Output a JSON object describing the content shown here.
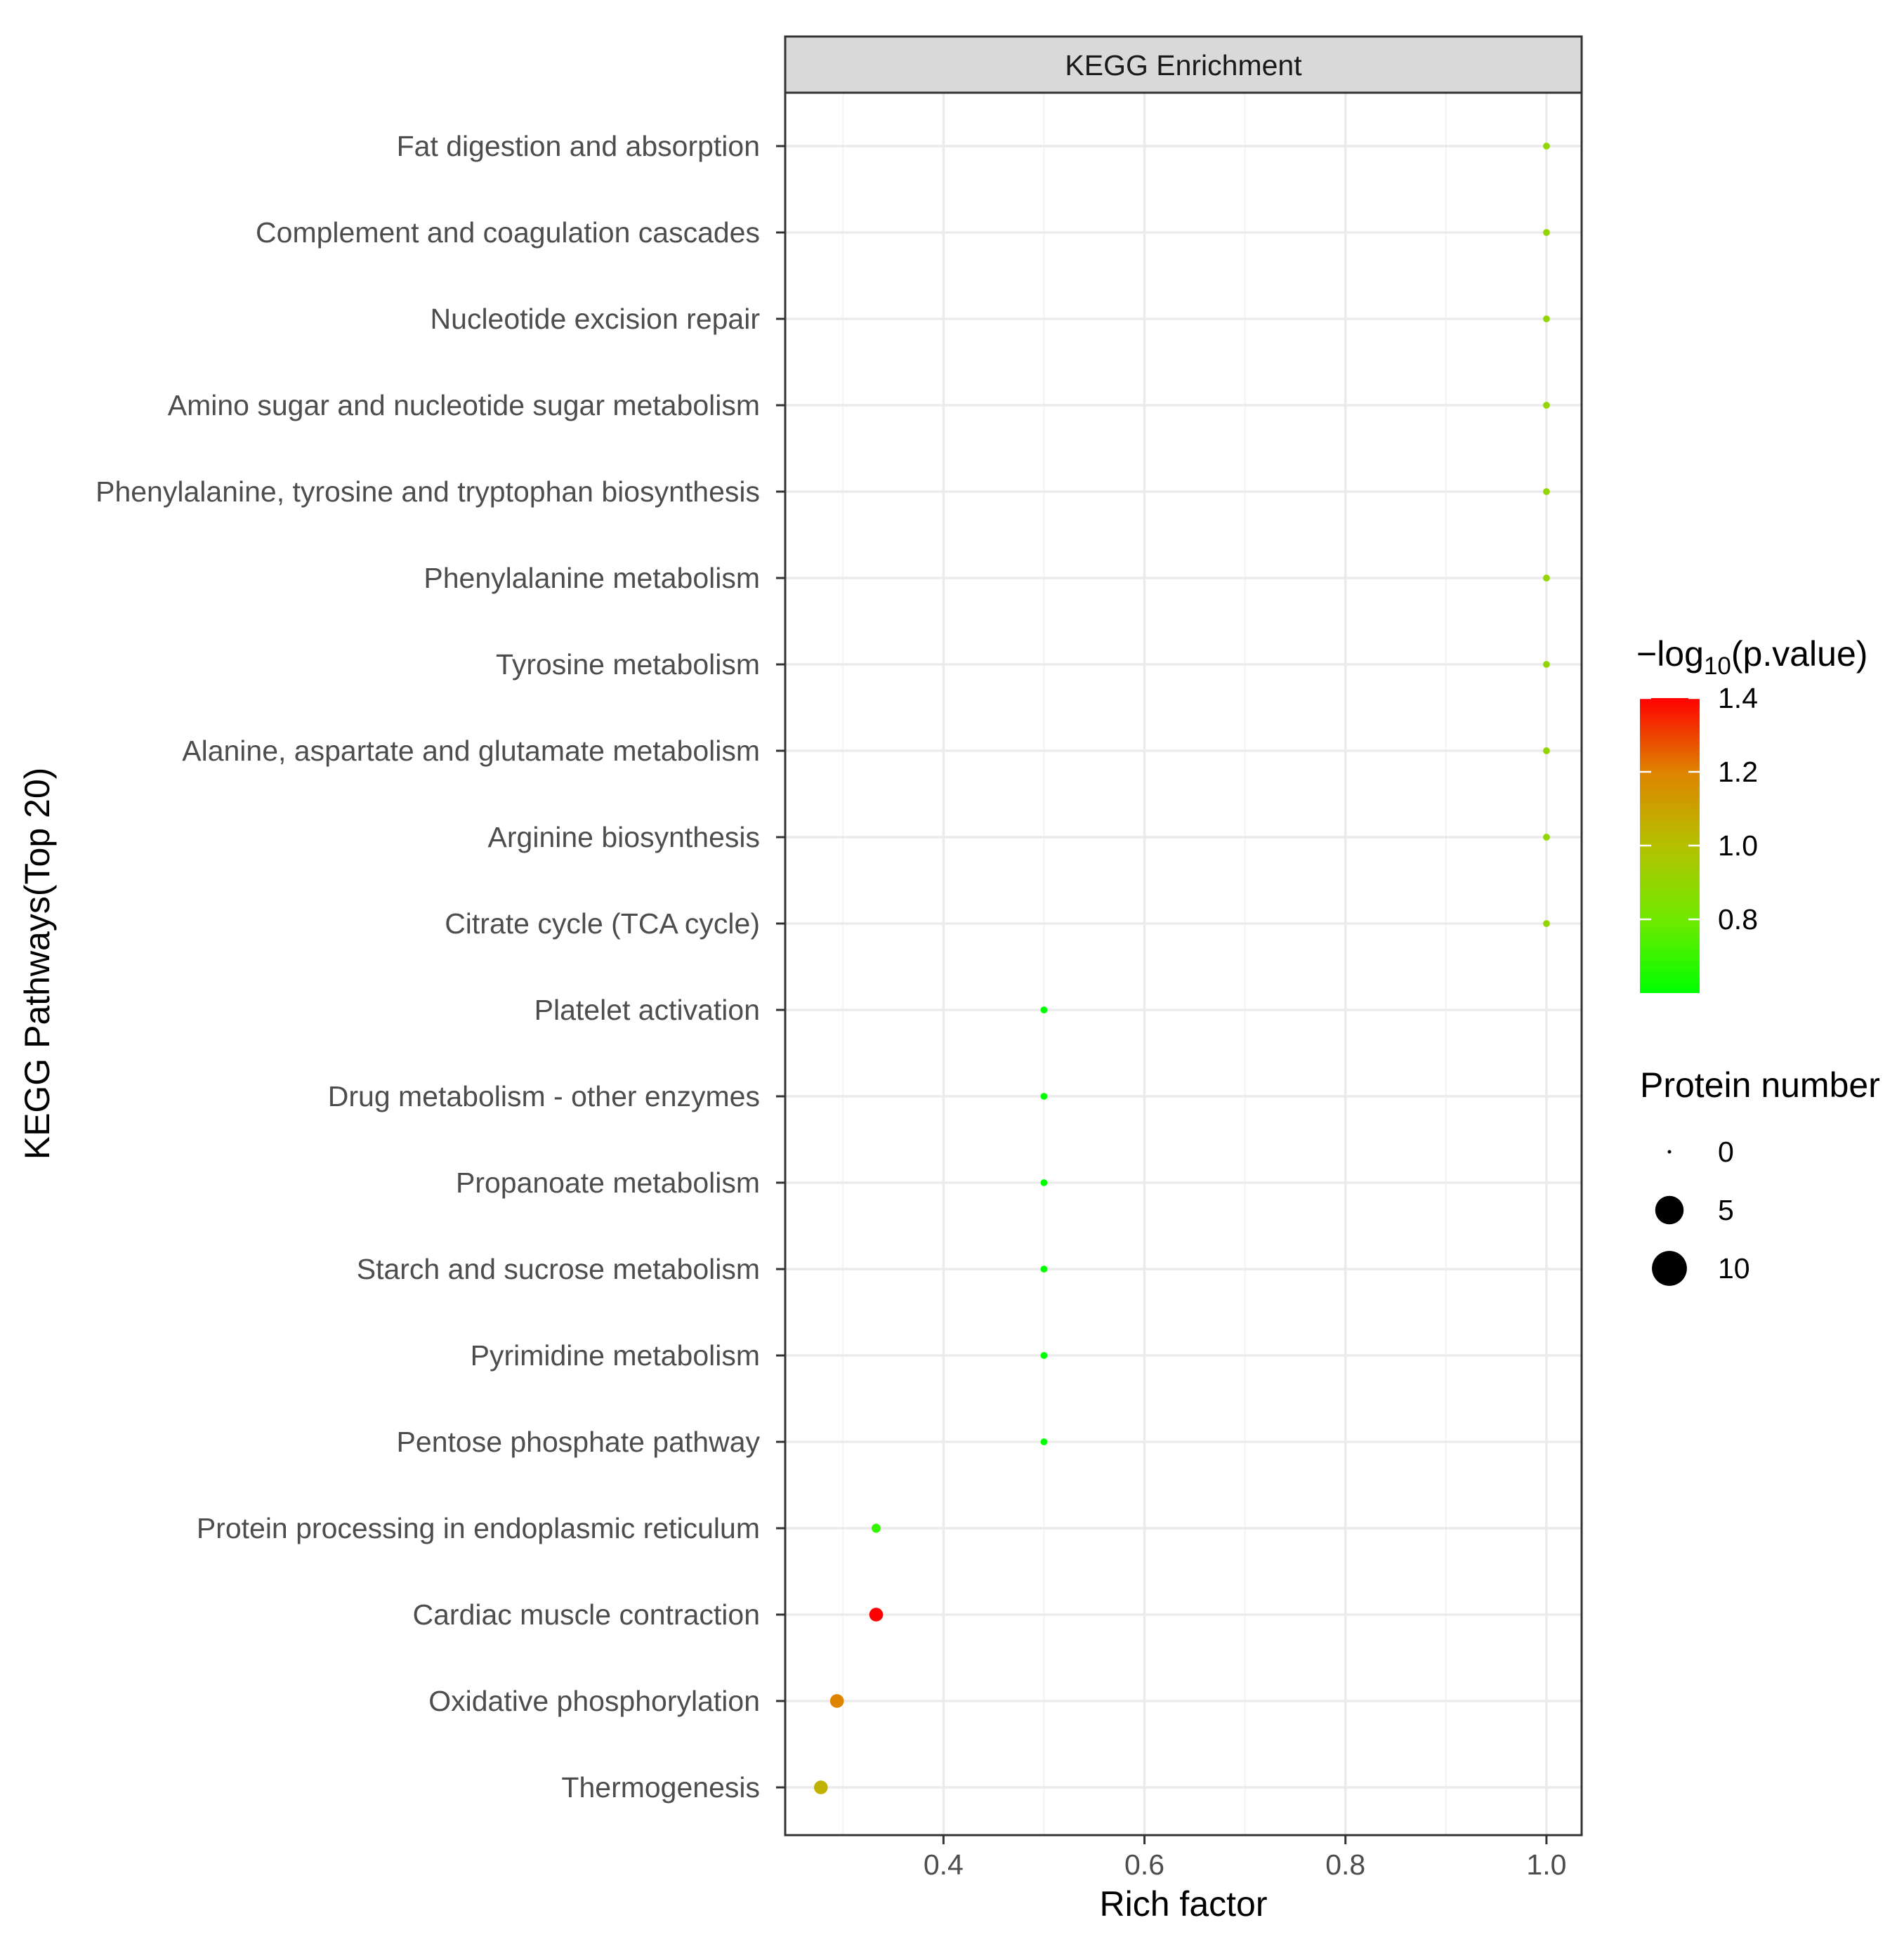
{
  "chart_data": {
    "type": "scatter",
    "title": "KEGG Enrichment",
    "xlabel": "Rich factor",
    "ylabel": "KEGG Pathways(Top 20)",
    "xlim": [
      0.2425,
      1.035
    ],
    "x_ticks": [
      0.4,
      0.6,
      0.8,
      1.0
    ],
    "x_tick_labels": [
      "0.4",
      "0.6",
      "0.8",
      "1.0"
    ],
    "grid": true,
    "legend_position": "right",
    "color_legend": {
      "title_prefix": "−log",
      "title_sub": "10",
      "title_suffix": "(p.value)",
      "min": 0.6,
      "max": 1.4,
      "breaks": [
        1.4,
        1.2,
        1.0,
        0.8
      ],
      "break_labels": [
        "1.4",
        "1.2",
        "1.0",
        "0.8"
      ],
      "low_color": "#00ff00",
      "high_color": "#ff0000"
    },
    "size_legend": {
      "title": "Protein number",
      "breaks": [
        0,
        5,
        10
      ],
      "break_labels": [
        "0",
        "5",
        "10"
      ]
    },
    "points": [
      {
        "pathway": "Fat digestion and absorption",
        "rich_factor": 1.0,
        "neg_log10_p": 0.9,
        "protein_number": 1
      },
      {
        "pathway": "Complement and coagulation cascades",
        "rich_factor": 1.0,
        "neg_log10_p": 0.9,
        "protein_number": 1
      },
      {
        "pathway": "Nucleotide excision repair",
        "rich_factor": 1.0,
        "neg_log10_p": 0.9,
        "protein_number": 1
      },
      {
        "pathway": "Amino sugar and nucleotide sugar metabolism",
        "rich_factor": 1.0,
        "neg_log10_p": 0.9,
        "protein_number": 1
      },
      {
        "pathway": "Phenylalanine, tyrosine and tryptophan biosynthesis",
        "rich_factor": 1.0,
        "neg_log10_p": 0.9,
        "protein_number": 1
      },
      {
        "pathway": "Phenylalanine metabolism",
        "rich_factor": 1.0,
        "neg_log10_p": 0.9,
        "protein_number": 1
      },
      {
        "pathway": "Tyrosine metabolism",
        "rich_factor": 1.0,
        "neg_log10_p": 0.9,
        "protein_number": 1
      },
      {
        "pathway": "Alanine, aspartate and glutamate metabolism",
        "rich_factor": 1.0,
        "neg_log10_p": 0.9,
        "protein_number": 1
      },
      {
        "pathway": "Arginine biosynthesis",
        "rich_factor": 1.0,
        "neg_log10_p": 0.9,
        "protein_number": 1
      },
      {
        "pathway": "Citrate cycle (TCA cycle)",
        "rich_factor": 1.0,
        "neg_log10_p": 0.9,
        "protein_number": 1
      },
      {
        "pathway": "Platelet activation",
        "rich_factor": 0.5,
        "neg_log10_p": 0.6,
        "protein_number": 1
      },
      {
        "pathway": "Drug metabolism - other enzymes",
        "rich_factor": 0.5,
        "neg_log10_p": 0.6,
        "protein_number": 1
      },
      {
        "pathway": "Propanoate metabolism",
        "rich_factor": 0.5,
        "neg_log10_p": 0.6,
        "protein_number": 1
      },
      {
        "pathway": "Starch and sucrose metabolism",
        "rich_factor": 0.5,
        "neg_log10_p": 0.6,
        "protein_number": 1
      },
      {
        "pathway": "Pyrimidine metabolism",
        "rich_factor": 0.5,
        "neg_log10_p": 0.6,
        "protein_number": 1
      },
      {
        "pathway": "Pentose phosphate pathway",
        "rich_factor": 0.5,
        "neg_log10_p": 0.6,
        "protein_number": 1
      },
      {
        "pathway": "Protein processing in endoplasmic reticulum",
        "rich_factor": 0.333,
        "neg_log10_p": 0.7,
        "protein_number": 2
      },
      {
        "pathway": "Cardiac muscle contraction",
        "rich_factor": 0.333,
        "neg_log10_p": 1.4,
        "protein_number": 5
      },
      {
        "pathway": "Oxidative phosphorylation",
        "rich_factor": 0.294,
        "neg_log10_p": 1.2,
        "protein_number": 5
      },
      {
        "pathway": "Thermogenesis",
        "rich_factor": 0.278,
        "neg_log10_p": 1.05,
        "protein_number": 5
      }
    ]
  }
}
